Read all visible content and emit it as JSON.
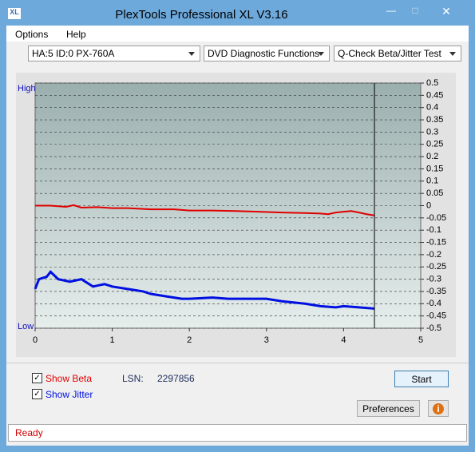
{
  "window": {
    "title": "PlexTools Professional XL V3.16",
    "menu": [
      "Options",
      "Help"
    ],
    "dropdowns": [
      "HA:5 ID:0  PX-760A",
      "DVD Diagnostic Functions",
      "Q-Check Beta/Jitter Test"
    ]
  },
  "chart_data": {
    "type": "line",
    "high_label": "High",
    "low_label": "Low",
    "xlim": [
      0,
      5
    ],
    "xticks": [
      0,
      1,
      2,
      3,
      4,
      5
    ],
    "ylim": [
      -0.5,
      0.5
    ],
    "yticks": [
      0.5,
      0.45,
      0.4,
      0.35,
      0.3,
      0.25,
      0.2,
      0.15,
      0.1,
      0.05,
      0,
      -0.05,
      -0.1,
      -0.15,
      -0.2,
      -0.25,
      -0.3,
      -0.35,
      -0.4,
      -0.45,
      -0.5
    ],
    "grid": true,
    "series": [
      {
        "name": "Show Beta",
        "color": "#e00000",
        "x": [
          0,
          0.2,
          0.4,
          0.5,
          0.6,
          0.8,
          1.0,
          1.2,
          1.5,
          1.8,
          2.0,
          2.3,
          2.6,
          2.9,
          3.2,
          3.5,
          3.7,
          3.8,
          3.9,
          4.0,
          4.1,
          4.2,
          4.3,
          4.4
        ],
        "values": [
          0,
          0,
          -0.005,
          0.002,
          -0.008,
          -0.006,
          -0.01,
          -0.01,
          -0.015,
          -0.015,
          -0.02,
          -0.02,
          -0.022,
          -0.025,
          -0.028,
          -0.03,
          -0.032,
          -0.035,
          -0.028,
          -0.025,
          -0.022,
          -0.028,
          -0.035,
          -0.04
        ]
      },
      {
        "name": "Show Jitter",
        "color": "#0010e0",
        "x": [
          0,
          0.05,
          0.15,
          0.2,
          0.3,
          0.45,
          0.6,
          0.75,
          0.9,
          1.0,
          1.2,
          1.4,
          1.5,
          1.7,
          1.9,
          2.0,
          2.3,
          2.5,
          2.8,
          3.0,
          3.2,
          3.5,
          3.7,
          3.9,
          4.0,
          4.2,
          4.4
        ],
        "values": [
          -0.34,
          -0.3,
          -0.29,
          -0.27,
          -0.3,
          -0.31,
          -0.3,
          -0.33,
          -0.32,
          -0.33,
          -0.34,
          -0.35,
          -0.36,
          -0.37,
          -0.38,
          -0.38,
          -0.375,
          -0.38,
          -0.38,
          -0.38,
          -0.39,
          -0.4,
          -0.41,
          -0.415,
          -0.41,
          -0.415,
          -0.42
        ]
      }
    ]
  },
  "controls": {
    "lsn_label": "LSN:",
    "lsn_value": "2297856",
    "start": "Start",
    "preferences": "Preferences",
    "info": "i"
  },
  "status": "Ready"
}
